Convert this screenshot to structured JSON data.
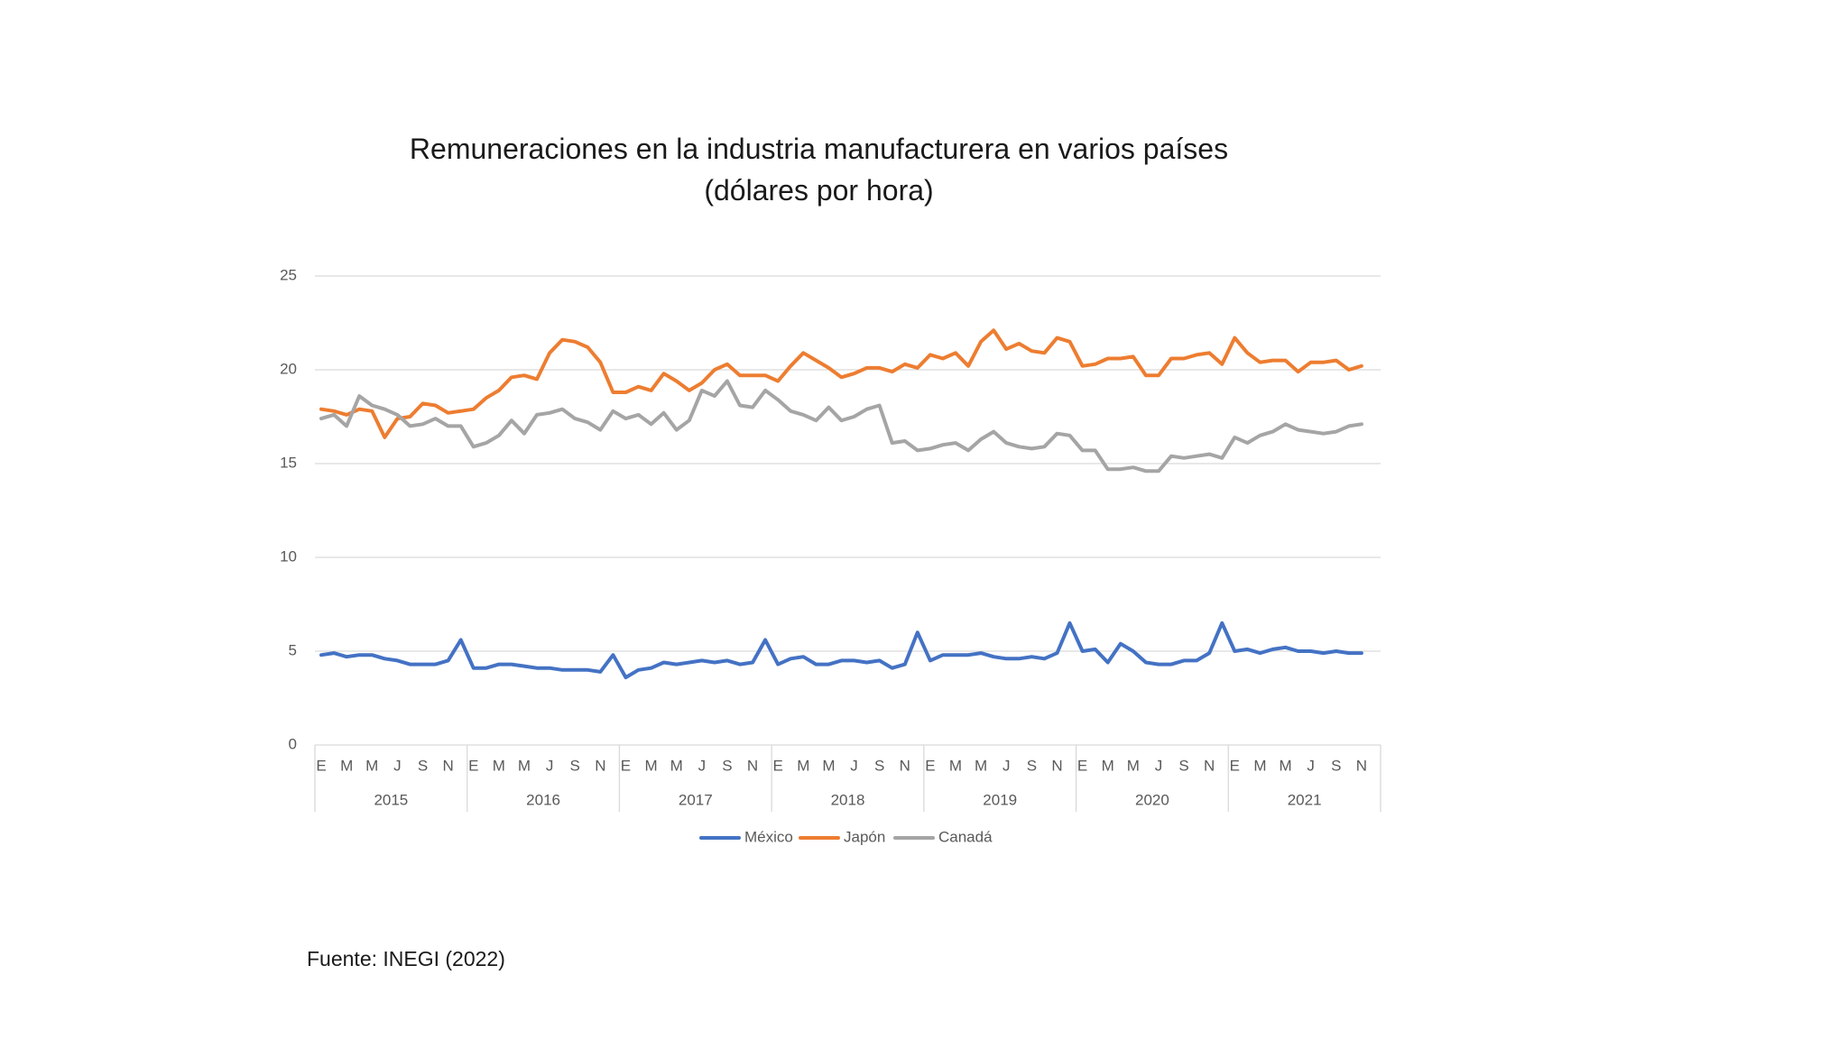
{
  "chart_data": {
    "type": "line",
    "title": "Remuneraciones en la industria manufacturera en varios países",
    "subtitle": "(dólares por hora)",
    "xlabel": "",
    "ylabel": "",
    "ylim": [
      0,
      25
    ],
    "yticks": [
      "0",
      "5",
      "10",
      "15",
      "20",
      "25"
    ],
    "grid": true,
    "legend_position": "bottom",
    "month_labels": [
      "E",
      "M",
      "M",
      "J",
      "S",
      "N"
    ],
    "years": [
      "2015",
      "2016",
      "2017",
      "2018",
      "2019",
      "2020",
      "2021"
    ],
    "series": [
      {
        "name": "México",
        "color": "#4472C4",
        "values": [
          4.8,
          4.9,
          4.7,
          4.8,
          4.8,
          4.6,
          4.5,
          4.3,
          4.3,
          4.3,
          4.5,
          5.6,
          4.1,
          4.1,
          4.3,
          4.3,
          4.2,
          4.1,
          4.1,
          4.0,
          4.0,
          4.0,
          3.9,
          4.8,
          3.6,
          4.0,
          4.1,
          4.4,
          4.3,
          4.4,
          4.5,
          4.4,
          4.5,
          4.3,
          4.4,
          5.6,
          4.3,
          4.6,
          4.7,
          4.3,
          4.3,
          4.5,
          4.5,
          4.4,
          4.5,
          4.1,
          4.3,
          6.0,
          4.5,
          4.8,
          4.8,
          4.8,
          4.9,
          4.7,
          4.6,
          4.6,
          4.7,
          4.6,
          4.9,
          6.5,
          5.0,
          5.1,
          4.4,
          5.4,
          5.0,
          4.4,
          4.3,
          4.3,
          4.5,
          4.5,
          4.9,
          6.5,
          5.0,
          5.1,
          4.9,
          5.1,
          5.2,
          5.0,
          5.0,
          4.9,
          5.0,
          4.9,
          4.9
        ]
      },
      {
        "name": "Japón",
        "color": "#ED7D31",
        "values": [
          17.9,
          17.8,
          17.6,
          17.9,
          17.8,
          16.4,
          17.4,
          17.5,
          18.2,
          18.1,
          17.7,
          17.8,
          17.9,
          18.5,
          18.9,
          19.6,
          19.7,
          19.5,
          20.9,
          21.6,
          21.5,
          21.2,
          20.4,
          18.8,
          18.8,
          19.1,
          18.9,
          19.8,
          19.4,
          18.9,
          19.3,
          20.0,
          20.3,
          19.7,
          19.7,
          19.7,
          19.4,
          20.2,
          20.9,
          20.5,
          20.1,
          19.6,
          19.8,
          20.1,
          20.1,
          19.9,
          20.3,
          20.1,
          20.8,
          20.6,
          20.9,
          20.2,
          21.5,
          22.1,
          21.1,
          21.4,
          21.0,
          20.9,
          21.7,
          21.5,
          20.2,
          20.3,
          20.6,
          20.6,
          20.7,
          19.7,
          19.7,
          20.6,
          20.6,
          20.8,
          20.9,
          20.3,
          21.7,
          20.9,
          20.4,
          20.5,
          20.5,
          19.9,
          20.4,
          20.4,
          20.5,
          20.0,
          20.2
        ]
      },
      {
        "name": "Canadá",
        "color": "#A5A5A5",
        "values": [
          17.4,
          17.6,
          17.0,
          18.6,
          18.1,
          17.9,
          17.6,
          17.0,
          17.1,
          17.4,
          17.0,
          17.0,
          15.9,
          16.1,
          16.5,
          17.3,
          16.6,
          17.6,
          17.7,
          17.9,
          17.4,
          17.2,
          16.8,
          17.8,
          17.4,
          17.6,
          17.1,
          17.7,
          16.8,
          17.3,
          18.9,
          18.6,
          19.4,
          18.1,
          18.0,
          18.9,
          18.4,
          17.8,
          17.6,
          17.3,
          18.0,
          17.3,
          17.5,
          17.9,
          18.1,
          16.1,
          16.2,
          15.7,
          15.8,
          16.0,
          16.1,
          15.7,
          16.3,
          16.7,
          16.1,
          15.9,
          15.8,
          15.9,
          16.6,
          16.5,
          15.7,
          15.7,
          14.7,
          14.7,
          14.8,
          14.6,
          14.6,
          15.4,
          15.3,
          15.4,
          15.5,
          15.3,
          16.4,
          16.1,
          16.5,
          16.7,
          17.1,
          16.8,
          16.7,
          16.6,
          16.7,
          17.0,
          17.1
        ]
      }
    ]
  },
  "source": "Fuente: INEGI (2022)"
}
